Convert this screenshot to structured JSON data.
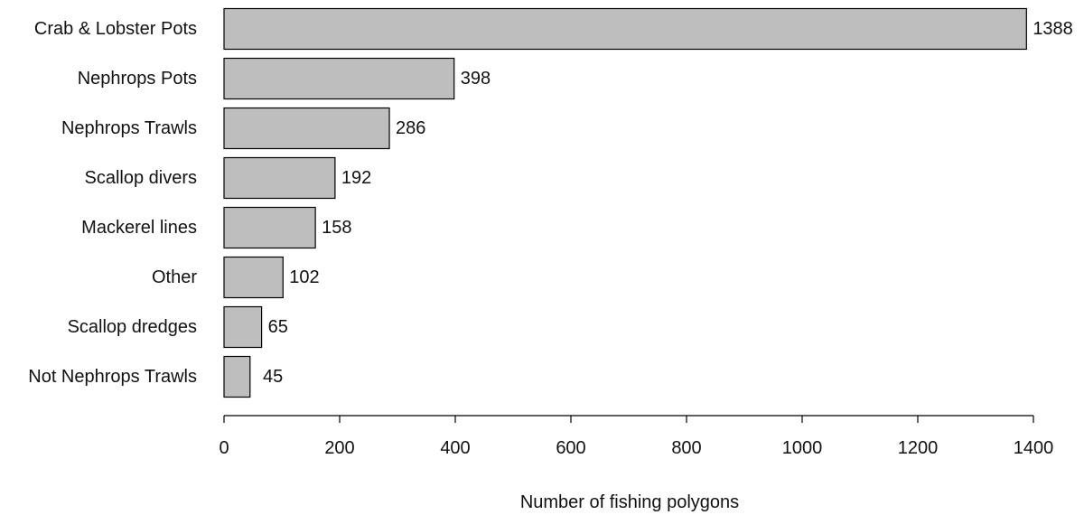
{
  "chart_data": {
    "type": "bar",
    "orientation": "horizontal",
    "categories": [
      "Crab & Lobster Pots",
      "Nephrops Pots",
      "Nephrops Trawls",
      "Scallop divers",
      "Mackerel lines",
      "Other",
      "Scallop dredges",
      "Not Nephrops Trawls"
    ],
    "values": [
      1388,
      398,
      286,
      192,
      158,
      102,
      65,
      45
    ],
    "data_labels": [
      "1388",
      "398",
      "286",
      "192",
      "158",
      "102",
      "65",
      "45"
    ],
    "xlabel": "Number of fishing polygons",
    "ylabel": "",
    "xlim": [
      0,
      1400
    ],
    "xticks": [
      0,
      200,
      400,
      600,
      800,
      1000,
      1200,
      1400
    ],
    "xtick_labels": [
      "0",
      "200",
      "400",
      "600",
      "800",
      "1000",
      "1200",
      "1400"
    ],
    "grid": false,
    "bar_color": "#bebebe",
    "edge_color": "#000000"
  }
}
